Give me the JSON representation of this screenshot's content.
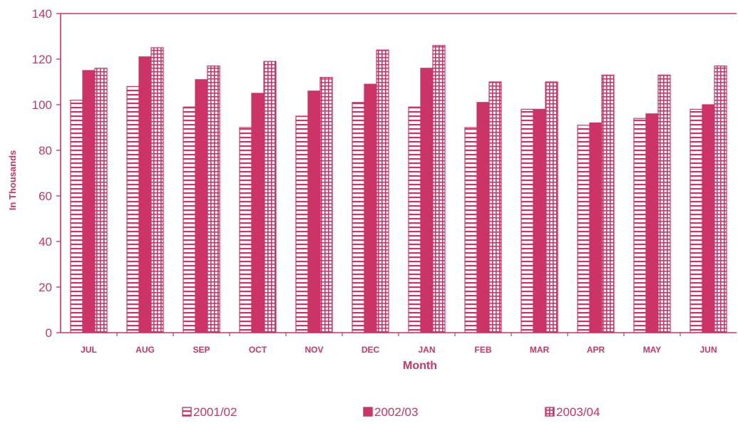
{
  "chart_data": {
    "type": "bar",
    "title": "",
    "xlabel": "Month",
    "ylabel": "In Thousands",
    "ylim": [
      0,
      140
    ],
    "yticks": [
      0,
      20,
      40,
      60,
      80,
      100,
      120,
      140
    ],
    "grid": false,
    "legend_position": "bottom",
    "categories": [
      "JUL",
      "AUG",
      "SEP",
      "OCT",
      "NOV",
      "DEC",
      "JAN",
      "FEB",
      "MAR",
      "APR",
      "MAY",
      "JUN"
    ],
    "series": [
      {
        "name": "2001/02",
        "pattern": "horizontal-lines",
        "values": [
          102,
          108,
          99,
          90,
          95,
          101,
          99,
          90,
          98,
          91,
          94,
          98
        ]
      },
      {
        "name": "2002/03",
        "pattern": "solid",
        "values": [
          115,
          121,
          111,
          105,
          106,
          109,
          116,
          101,
          98,
          92,
          96,
          100
        ]
      },
      {
        "name": "2003/04",
        "pattern": "grid",
        "values": [
          116,
          125,
          117,
          119,
          112,
          124,
          126,
          110,
          110,
          113,
          113,
          117
        ]
      }
    ],
    "colors": {
      "main": "#cc3366",
      "fill_light": "#ffffff"
    }
  }
}
